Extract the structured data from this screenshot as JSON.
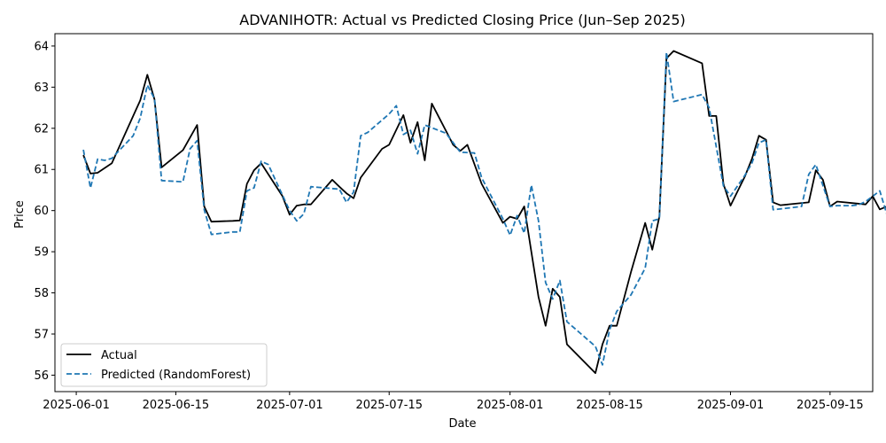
{
  "chart_data": {
    "type": "line",
    "title": "ADVANIHOTR: Actual vs Predicted Closing Price (Jun–Sep 2025)",
    "xlabel": "Date",
    "ylabel": "Price",
    "x_type": "date",
    "xlim": [
      "2025-05-29",
      "2025-09-21"
    ],
    "ylim": [
      55.6,
      64.3
    ],
    "x_ticks": [
      "2025-06-01",
      "2025-06-15",
      "2025-07-01",
      "2025-07-15",
      "2025-08-01",
      "2025-08-15",
      "2025-09-01",
      "2025-09-15"
    ],
    "y_ticks": [
      56,
      57,
      58,
      59,
      60,
      61,
      62,
      63,
      64
    ],
    "grid": false,
    "legend": "lower-left",
    "series": [
      {
        "name": "Actual",
        "color": "#000000",
        "style": "solid",
        "points": [
          [
            "2025-06-02",
            61.35
          ],
          [
            "2025-06-03",
            60.9
          ],
          [
            "2025-06-04",
            60.92
          ],
          [
            "2025-06-06",
            61.15
          ],
          [
            "2025-06-10",
            62.68
          ],
          [
            "2025-06-11",
            63.3
          ],
          [
            "2025-06-12",
            62.7
          ],
          [
            "2025-06-13",
            61.05
          ],
          [
            "2025-06-16",
            61.47
          ],
          [
            "2025-06-18",
            62.08
          ],
          [
            "2025-06-19",
            60.1
          ],
          [
            "2025-06-20",
            59.73
          ],
          [
            "2025-06-23",
            59.75
          ],
          [
            "2025-06-24",
            59.76
          ],
          [
            "2025-06-25",
            60.65
          ],
          [
            "2025-06-26",
            60.98
          ],
          [
            "2025-06-27",
            61.15
          ],
          [
            "2025-06-30",
            60.35
          ],
          [
            "2025-07-01",
            59.9
          ],
          [
            "2025-07-02",
            60.12
          ],
          [
            "2025-07-03",
            60.15
          ],
          [
            "2025-07-04",
            60.15
          ],
          [
            "2025-07-07",
            60.75
          ],
          [
            "2025-07-08",
            60.58
          ],
          [
            "2025-07-09",
            60.42
          ],
          [
            "2025-07-10",
            60.3
          ],
          [
            "2025-07-11",
            60.8
          ],
          [
            "2025-07-14",
            61.5
          ],
          [
            "2025-07-15",
            61.6
          ],
          [
            "2025-07-17",
            62.32
          ],
          [
            "2025-07-18",
            61.65
          ],
          [
            "2025-07-19",
            62.15
          ],
          [
            "2025-07-20",
            61.22
          ],
          [
            "2025-07-21",
            62.6
          ],
          [
            "2025-07-24",
            61.6
          ],
          [
            "2025-07-25",
            61.45
          ],
          [
            "2025-07-26",
            61.6
          ],
          [
            "2025-07-28",
            60.65
          ],
          [
            "2025-07-31",
            59.7
          ],
          [
            "2025-08-01",
            59.85
          ],
          [
            "2025-08-02",
            59.8
          ],
          [
            "2025-08-03",
            60.1
          ],
          [
            "2025-08-04",
            59.0
          ],
          [
            "2025-08-05",
            57.9
          ],
          [
            "2025-08-06",
            57.2
          ],
          [
            "2025-08-07",
            58.1
          ],
          [
            "2025-08-08",
            57.9
          ],
          [
            "2025-08-09",
            56.75
          ],
          [
            "2025-08-13",
            56.05
          ],
          [
            "2025-08-14",
            56.75
          ],
          [
            "2025-08-15",
            57.2
          ],
          [
            "2025-08-16",
            57.2
          ],
          [
            "2025-08-18",
            58.5
          ],
          [
            "2025-08-20",
            59.7
          ],
          [
            "2025-08-21",
            59.05
          ],
          [
            "2025-08-22",
            59.85
          ],
          [
            "2025-08-23",
            63.7
          ],
          [
            "2025-08-24",
            63.88
          ],
          [
            "2025-08-28",
            63.58
          ],
          [
            "2025-08-29",
            62.3
          ],
          [
            "2025-08-30",
            62.3
          ],
          [
            "2025-08-31",
            60.65
          ],
          [
            "2025-09-01",
            60.12
          ],
          [
            "2025-09-03",
            60.82
          ],
          [
            "2025-09-04",
            61.25
          ],
          [
            "2025-09-05",
            61.82
          ],
          [
            "2025-09-06",
            61.72
          ],
          [
            "2025-09-07",
            60.2
          ],
          [
            "2025-09-08",
            60.13
          ],
          [
            "2025-09-12",
            60.2
          ],
          [
            "2025-09-13",
            60.98
          ],
          [
            "2025-09-14",
            60.75
          ],
          [
            "2025-09-15",
            60.1
          ],
          [
            "2025-09-16",
            60.22
          ],
          [
            "2025-09-20",
            60.15
          ],
          [
            "2025-09-21",
            60.35
          ],
          [
            "2025-09-22",
            60.03
          ],
          [
            "2025-09-23",
            60.1
          ]
        ]
      },
      {
        "name": "Predicted (RandomForest)",
        "color": "#1f77b4",
        "style": "dashed",
        "points": [
          [
            "2025-06-02",
            61.48
          ],
          [
            "2025-06-03",
            60.55
          ],
          [
            "2025-06-04",
            61.25
          ],
          [
            "2025-06-05",
            61.22
          ],
          [
            "2025-06-06",
            61.27
          ],
          [
            "2025-06-09",
            61.82
          ],
          [
            "2025-06-10",
            62.25
          ],
          [
            "2025-06-11",
            63.05
          ],
          [
            "2025-06-12",
            62.72
          ],
          [
            "2025-06-13",
            60.73
          ],
          [
            "2025-06-16",
            60.7
          ],
          [
            "2025-06-17",
            61.5
          ],
          [
            "2025-06-18",
            61.7
          ],
          [
            "2025-06-19",
            60.02
          ],
          [
            "2025-06-20",
            59.42
          ],
          [
            "2025-06-23",
            59.48
          ],
          [
            "2025-06-24",
            59.48
          ],
          [
            "2025-06-25",
            60.48
          ],
          [
            "2025-06-26",
            60.55
          ],
          [
            "2025-06-27",
            61.2
          ],
          [
            "2025-06-28",
            61.12
          ],
          [
            "2025-07-01",
            60.0
          ],
          [
            "2025-07-02",
            59.75
          ],
          [
            "2025-07-03",
            59.92
          ],
          [
            "2025-07-04",
            60.58
          ],
          [
            "2025-07-06",
            60.55
          ],
          [
            "2025-07-08",
            60.52
          ],
          [
            "2025-07-09",
            60.2
          ],
          [
            "2025-07-10",
            60.45
          ],
          [
            "2025-07-11",
            61.82
          ],
          [
            "2025-07-12",
            61.9
          ],
          [
            "2025-07-15",
            62.35
          ],
          [
            "2025-07-16",
            62.55
          ],
          [
            "2025-07-17",
            61.85
          ],
          [
            "2025-07-18",
            61.95
          ],
          [
            "2025-07-19",
            61.38
          ],
          [
            "2025-07-20",
            62.08
          ],
          [
            "2025-07-23",
            61.88
          ],
          [
            "2025-07-25",
            61.42
          ],
          [
            "2025-07-27",
            61.4
          ],
          [
            "2025-07-28",
            60.8
          ],
          [
            "2025-07-31",
            59.8
          ],
          [
            "2025-08-01",
            59.4
          ],
          [
            "2025-08-02",
            59.88
          ],
          [
            "2025-08-03",
            59.45
          ],
          [
            "2025-08-04",
            60.62
          ],
          [
            "2025-08-05",
            59.75
          ],
          [
            "2025-08-06",
            58.25
          ],
          [
            "2025-08-07",
            57.85
          ],
          [
            "2025-08-08",
            58.3
          ],
          [
            "2025-08-09",
            57.3
          ],
          [
            "2025-08-13",
            56.7
          ],
          [
            "2025-08-14",
            56.25
          ],
          [
            "2025-08-15",
            57.1
          ],
          [
            "2025-08-16",
            57.55
          ],
          [
            "2025-08-18",
            57.95
          ],
          [
            "2025-08-20",
            58.6
          ],
          [
            "2025-08-21",
            59.75
          ],
          [
            "2025-08-22",
            59.8
          ],
          [
            "2025-08-23",
            63.85
          ],
          [
            "2025-08-24",
            62.65
          ],
          [
            "2025-08-28",
            62.82
          ],
          [
            "2025-08-29",
            62.5
          ],
          [
            "2025-08-31",
            60.6
          ],
          [
            "2025-09-01",
            60.35
          ],
          [
            "2025-09-03",
            60.85
          ],
          [
            "2025-09-04",
            61.15
          ],
          [
            "2025-09-05",
            61.65
          ],
          [
            "2025-09-06",
            61.72
          ],
          [
            "2025-09-07",
            60.02
          ],
          [
            "2025-09-10",
            60.08
          ],
          [
            "2025-09-11",
            60.1
          ],
          [
            "2025-09-12",
            60.88
          ],
          [
            "2025-09-13",
            61.12
          ],
          [
            "2025-09-15",
            60.1
          ],
          [
            "2025-09-16",
            60.12
          ],
          [
            "2025-09-18",
            60.12
          ],
          [
            "2025-09-19",
            60.14
          ],
          [
            "2025-09-20",
            60.22
          ],
          [
            "2025-09-22",
            60.48
          ],
          [
            "2025-09-23",
            59.9
          ]
        ]
      }
    ]
  }
}
